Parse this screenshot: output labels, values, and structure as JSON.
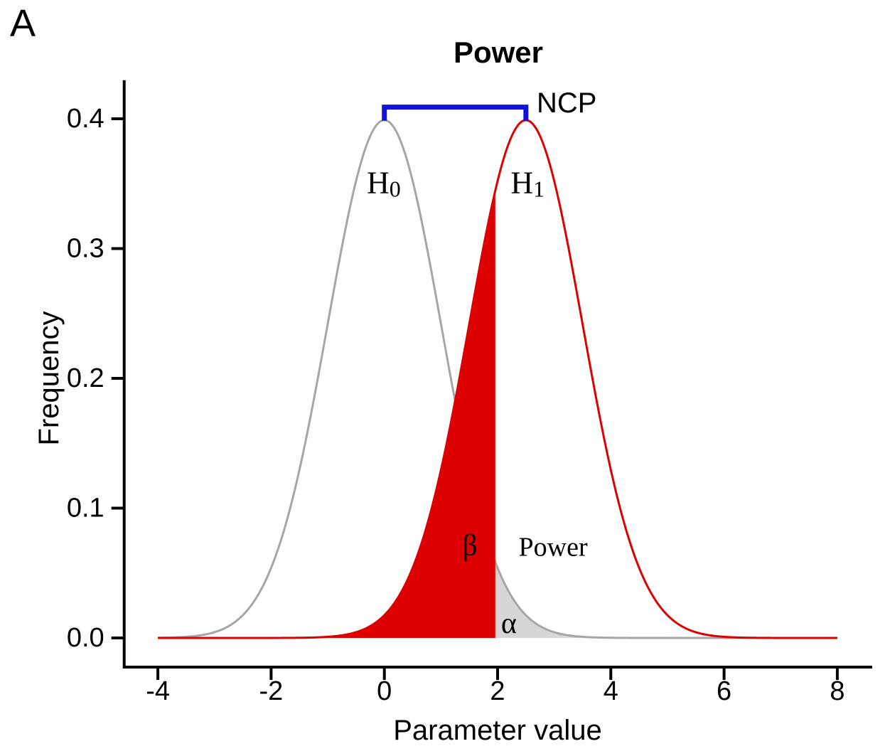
{
  "panel_label": "A",
  "title": "Power",
  "chart_data": {
    "type": "area",
    "title": "Power",
    "xlabel": "Parameter value",
    "ylabel": "Frequency",
    "xlim": [
      -4,
      8
    ],
    "ylim": [
      0,
      0.42
    ],
    "grid": false,
    "x_ticks": {
      "values": [
        -4,
        -2,
        0,
        2,
        4,
        6,
        8
      ],
      "labels": [
        "-4",
        "-2",
        "0",
        "2",
        "4",
        "6",
        "8"
      ]
    },
    "y_ticks": {
      "values": [
        0,
        0.1,
        0.2,
        0.3,
        0.4
      ],
      "labels": [
        "0.0",
        "0.1",
        "0.2",
        "0.3",
        "0.4"
      ]
    },
    "curves": [
      {
        "id": "H0",
        "name": "null-distribution",
        "mean": 0,
        "sd": 1,
        "peak_density": 0.399,
        "color": "#A6A6A6",
        "range": [
          -4,
          8
        ]
      },
      {
        "id": "H1",
        "name": "alternative-distribution",
        "mean": 2.5,
        "sd": 1,
        "peak_density": 0.399,
        "color": "#DC0000",
        "range": [
          -4,
          8
        ]
      }
    ],
    "critical_value": 1.96,
    "ncp": 2.5,
    "regions": [
      {
        "id": "beta",
        "label": "β",
        "curve": "H1",
        "from": -4,
        "to": 1.96,
        "fill": "#DC0000"
      },
      {
        "id": "alpha",
        "label": "α",
        "curve": "H0",
        "from": 1.96,
        "to": 8,
        "fill": "#D6D6D6"
      }
    ],
    "bracket": {
      "label": "NCP",
      "x1": 0,
      "x2": 2.5,
      "y": 0.409,
      "tick_drop": 0.0105,
      "color": "#1111E0"
    },
    "annotations": [
      {
        "id": "h0-label",
        "text": "H",
        "subscript": "0",
        "x": -0.01,
        "y": 0.351
      },
      {
        "id": "h1-label",
        "text": "H",
        "subscript": "1",
        "x": 2.53,
        "y": 0.351
      },
      {
        "id": "beta-label",
        "text": "β",
        "x": 1.51,
        "y": 0.071
      },
      {
        "id": "power-label",
        "text": "Power",
        "x": 2.98,
        "y": 0.07
      },
      {
        "id": "alpha-label",
        "text": "α",
        "x": 2.2,
        "y": 0.011
      },
      {
        "id": "ncp-label",
        "text": "NCP",
        "x": 2.69,
        "y": 0.412
      }
    ],
    "colors": {
      "axis": "#000000",
      "red": "#DC0000",
      "gray_line": "#A6A6A6",
      "gray_fill": "#D6D6D6",
      "blue": "#1111E0"
    }
  }
}
